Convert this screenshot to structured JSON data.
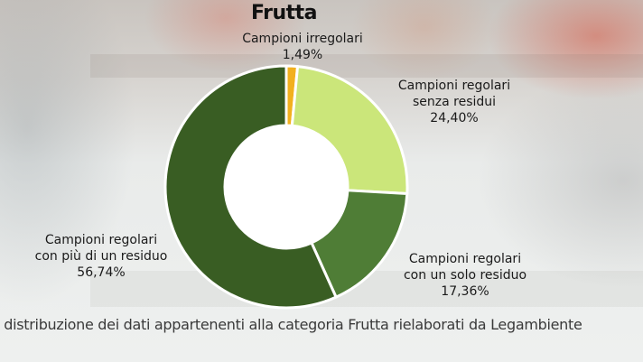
{
  "chart_data": {
    "type": "pie",
    "style": "donut",
    "title": "Frutta",
    "slices": [
      {
        "label": "Campioni irregolari",
        "value": 1.49,
        "display": "1,49%",
        "color": "#f2b01e"
      },
      {
        "label": "Campioni regolari senza residui",
        "value": 24.4,
        "display": "24,40%",
        "color": "#cbe67a"
      },
      {
        "label": "Campioni regolari con un solo residuo",
        "value": 17.36,
        "display": "17,36%",
        "color": "#4f7d36"
      },
      {
        "label": "Campioni regolari con più di un residuo",
        "value": 56.74,
        "display": "56,74%",
        "color": "#395d23"
      }
    ]
  },
  "labels": {
    "irregolari": {
      "line1": "Campioni irregolari",
      "value": "1,49%"
    },
    "senza": {
      "line1": "Campioni regolari",
      "line2": "senza residui",
      "value": "24,40%"
    },
    "solo": {
      "line1": "Campioni regolari",
      "line2": "con un solo residuo",
      "value": "17,36%"
    },
    "piu": {
      "line1": "Campioni regolari",
      "line2": "con più di un residuo",
      "value": "56,74%"
    }
  },
  "caption": "- distribuzione dei dati appartenenti alla categoria Frutta rielaborati da Legambiente"
}
